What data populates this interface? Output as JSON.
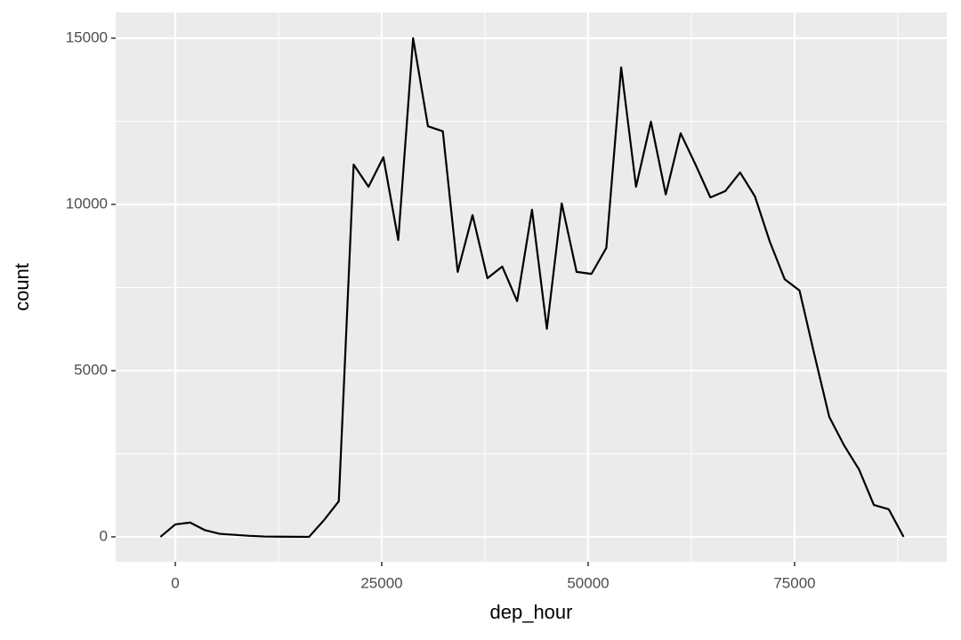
{
  "chart_data": {
    "type": "line",
    "x_label": "dep_hour",
    "y_label": "count",
    "x": [
      -1800,
      0,
      1800,
      3600,
      5400,
      7200,
      9000,
      10800,
      12600,
      14400,
      16200,
      18000,
      19800,
      21600,
      23400,
      25200,
      27000,
      28800,
      30600,
      32400,
      34200,
      36000,
      37800,
      39600,
      41400,
      43200,
      45000,
      46800,
      48600,
      50400,
      52200,
      54000,
      55800,
      57600,
      59400,
      61200,
      63000,
      64800,
      66600,
      68400,
      70200,
      72000,
      73800,
      75600,
      77400,
      79200,
      81000,
      82800,
      84600,
      86400,
      88200
    ],
    "series": [
      {
        "color": "#000000",
        "values": [
          0,
          375,
          430,
          200,
          90,
          60,
          30,
          10,
          5,
          3,
          0,
          500,
          1070,
          11200,
          10530,
          11420,
          8930,
          15000,
          12350,
          12200,
          7970,
          9680,
          7780,
          8130,
          7090,
          9840,
          6260,
          10030,
          7970,
          7910,
          8690,
          14120,
          10530,
          12490,
          10300,
          12140,
          11200,
          10210,
          10400,
          10960,
          10240,
          8880,
          7750,
          7410,
          5480,
          3610,
          2750,
          2030,
          960,
          830,
          0
        ]
      }
    ],
    "xlim": [
      -7220,
      93430
    ],
    "xticks": [
      0,
      25000,
      50000,
      75000
    ],
    "ylim": [
      -750,
      15775
    ],
    "yticks": [
      0,
      5000,
      10000,
      15000
    ],
    "grid": true
  }
}
